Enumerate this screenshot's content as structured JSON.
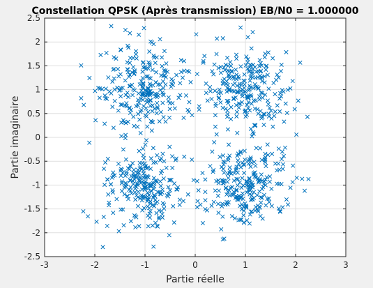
{
  "chart_data": {
    "type": "scatter",
    "title": "Constellation QPSK (Après transmission) EB/N0 = 1.000000",
    "xlabel": "Partie réelle",
    "ylabel": "Partie imaginaire",
    "xlim": [
      -3,
      3
    ],
    "ylim": [
      -2.5,
      2.5
    ],
    "xticks": [
      -3,
      -2,
      -1,
      0,
      1,
      2,
      3
    ],
    "xtick_labels": [
      "-3",
      "-2",
      "-1",
      "0",
      "1",
      "2",
      "3"
    ],
    "yticks": [
      2.5,
      2,
      1.5,
      1,
      0.5,
      0,
      -0.5,
      -1,
      -1.5,
      -2,
      -2.5
    ],
    "ytick_labels": [
      "2.5",
      "2",
      "1.5",
      "1",
      "0.5",
      "0",
      "-0.5",
      "-1",
      "-1.5",
      "-2",
      "-2.5"
    ],
    "grid": true,
    "marker": "x",
    "marker_color": "#0072bd",
    "constellation_points": [
      {
        "x": 1,
        "y": 1
      },
      {
        "x": -1,
        "y": 1
      },
      {
        "x": -1,
        "y": -1
      },
      {
        "x": 1,
        "y": -1
      }
    ],
    "noise_std_per_axis": 0.42,
    "points_per_symbol": 250,
    "points": [
      [
        -2.22,
        0.68
      ],
      [
        -2.23,
        -1.55
      ],
      [
        -1.84,
        -2.3
      ],
      [
        0.02,
        2.16
      ],
      [
        -1.02,
        2.29
      ],
      [
        -0.83,
        -2.29
      ],
      [
        -1.39,
        2.25
      ],
      [
        0.55,
        -2.14
      ],
      [
        2.18,
        -1.12
      ],
      [
        2.13,
        -0.87
      ],
      [
        1.05,
        2.1
      ],
      [
        1.77,
        0.33
      ],
      [
        -1.75,
        -0.88
      ],
      [
        -1.78,
        1.02
      ],
      [
        1.45,
        -0.37
      ],
      [
        0.9,
        0.7
      ]
    ]
  }
}
